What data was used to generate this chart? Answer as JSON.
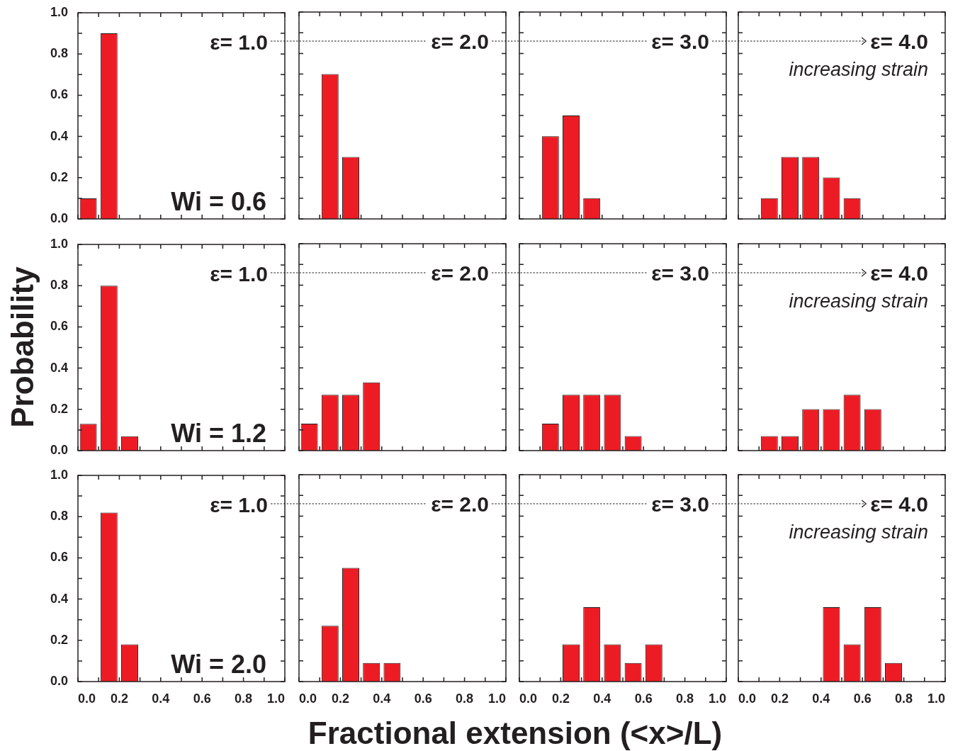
{
  "chart_data": [
    {
      "type": "histogram",
      "bins": [
        0,
        0.1,
        0.2
      ],
      "values": [
        0.1,
        0.9
      ],
      "color": "#ed1c24",
      "xlim": [
        0,
        1
      ],
      "ylim": [
        0,
        1
      ],
      "xticks": [
        0,
        0.1,
        0.2,
        0.3,
        0.4,
        0.5,
        0.6,
        0.7,
        0.8,
        0.9,
        1
      ],
      "yticks": [
        {
          "value": 0,
          "label": "0.0"
        },
        {
          "value": 0.1,
          "label": null
        },
        0.2,
        {
          "value": 0.3,
          "label": null
        },
        0.4,
        {
          "value": 0.5,
          "label": null
        },
        0.6,
        {
          "value": 0.7,
          "label": null
        },
        0.8,
        {
          "value": 0.9,
          "label": null
        },
        {
          "value": 1,
          "label": "1.0"
        }
      ],
      "tick_labels": "y",
      "annotations": [
        "ε= 1.0",
        "Wi = 0.6"
      ]
    },
    {
      "type": "histogram",
      "bins": [
        0.1,
        0.2,
        0.3
      ],
      "values": [
        0.7,
        0.3
      ],
      "color": "#ed1c24",
      "xlim": [
        0,
        1
      ],
      "ylim": [
        0,
        1
      ],
      "xticks": [
        0,
        0.1,
        0.2,
        0.3,
        0.4,
        0.5,
        0.6,
        0.7,
        0.8,
        0.9,
        1
      ],
      "yticks": [
        0,
        0.1,
        0.2,
        0.3,
        0.4,
        0.5,
        0.6,
        0.7,
        0.8,
        0.9,
        1
      ],
      "tick_labels": false,
      "annotations": [
        "ε= 2.0"
      ]
    },
    {
      "type": "histogram",
      "bins": [
        0.1,
        0.2,
        0.3,
        0.4
      ],
      "values": [
        0.4,
        0.5,
        0.1
      ],
      "color": "#ed1c24",
      "xlim": [
        0,
        1
      ],
      "ylim": [
        0,
        1
      ],
      "xticks": [
        0,
        0.1,
        0.2,
        0.3,
        0.4,
        0.5,
        0.6,
        0.7,
        0.8,
        0.9,
        1
      ],
      "yticks": [
        0,
        0.1,
        0.2,
        0.3,
        0.4,
        0.5,
        0.6,
        0.7,
        0.8,
        0.9,
        1
      ],
      "tick_labels": false,
      "annotations": [
        "ε= 3.0"
      ]
    },
    {
      "type": "histogram",
      "bins": [
        0.1,
        0.2,
        0.3,
        0.4,
        0.5,
        0.6
      ],
      "values": [
        0.1,
        0.3,
        0.3,
        0.2,
        0.1
      ],
      "color": "#ed1c24",
      "xlim": [
        0,
        1
      ],
      "ylim": [
        0,
        1
      ],
      "xticks": [
        0,
        0.1,
        0.2,
        0.3,
        0.4,
        0.5,
        0.6,
        0.7,
        0.8,
        0.9,
        1
      ],
      "yticks": [
        0,
        0.1,
        0.2,
        0.3,
        0.4,
        0.5,
        0.6,
        0.7,
        0.8,
        0.9,
        1
      ],
      "tick_labels": false,
      "annotations": [
        "ε= 4.0",
        "increasing strain"
      ]
    },
    {
      "type": "histogram",
      "bins": [
        0,
        0.1,
        0.2,
        0.3
      ],
      "values": [
        0.13,
        0.8,
        0.07
      ],
      "color": "#ed1c24",
      "xlim": [
        0,
        1
      ],
      "ylim": [
        0,
        1
      ],
      "xticks": [
        0,
        0.1,
        0.2,
        0.3,
        0.4,
        0.5,
        0.6,
        0.7,
        0.8,
        0.9,
        1
      ],
      "yticks": [
        {
          "value": 0,
          "label": "0.0"
        },
        {
          "value": 0.1,
          "label": null
        },
        0.2,
        {
          "value": 0.3,
          "label": null
        },
        0.4,
        {
          "value": 0.5,
          "label": null
        },
        0.6,
        {
          "value": 0.7,
          "label": null
        },
        0.8,
        {
          "value": 0.9,
          "label": null
        },
        {
          "value": 1,
          "label": "1.0"
        }
      ],
      "tick_labels": "y",
      "ylabel": "Probability",
      "annotations": [
        "ε= 1.0",
        "Wi = 1.2"
      ]
    },
    {
      "type": "histogram",
      "bins": [
        0,
        0.1,
        0.2,
        0.3,
        0.4
      ],
      "values": [
        0.13,
        0.27,
        0.27,
        0.33
      ],
      "color": "#ed1c24",
      "xlim": [
        0,
        1
      ],
      "ylim": [
        0,
        1
      ],
      "xticks": [
        0,
        0.1,
        0.2,
        0.3,
        0.4,
        0.5,
        0.6,
        0.7,
        0.8,
        0.9,
        1
      ],
      "yticks": [
        0,
        0.1,
        0.2,
        0.3,
        0.4,
        0.5,
        0.6,
        0.7,
        0.8,
        0.9,
        1
      ],
      "tick_labels": false,
      "annotations": [
        "ε= 2.0"
      ]
    },
    {
      "type": "histogram",
      "bins": [
        0.1,
        0.2,
        0.3,
        0.4,
        0.5,
        0.6
      ],
      "values": [
        0.13,
        0.27,
        0.27,
        0.27,
        0.07
      ],
      "color": "#ed1c24",
      "xlim": [
        0,
        1
      ],
      "ylim": [
        0,
        1
      ],
      "xticks": [
        0,
        0.1,
        0.2,
        0.3,
        0.4,
        0.5,
        0.6,
        0.7,
        0.8,
        0.9,
        1
      ],
      "yticks": [
        0,
        0.1,
        0.2,
        0.3,
        0.4,
        0.5,
        0.6,
        0.7,
        0.8,
        0.9,
        1
      ],
      "tick_labels": false,
      "annotations": [
        "ε= 3.0"
      ]
    },
    {
      "type": "histogram",
      "bins": [
        0.1,
        0.2,
        0.3,
        0.4,
        0.5,
        0.6,
        0.7
      ],
      "values": [
        0.07,
        0.07,
        0.2,
        0.2,
        0.27,
        0.2
      ],
      "color": "#ed1c24",
      "xlim": [
        0,
        1
      ],
      "ylim": [
        0,
        1
      ],
      "xticks": [
        0,
        0.1,
        0.2,
        0.3,
        0.4,
        0.5,
        0.6,
        0.7,
        0.8,
        0.9,
        1
      ],
      "yticks": [
        0,
        0.1,
        0.2,
        0.3,
        0.4,
        0.5,
        0.6,
        0.7,
        0.8,
        0.9,
        1
      ],
      "tick_labels": false,
      "annotations": [
        "ε= 4.0",
        "increasing strain"
      ]
    },
    {
      "type": "histogram",
      "bins": [
        0.1,
        0.2,
        0.3
      ],
      "values": [
        0.82,
        0.18
      ],
      "color": "#ed1c24",
      "xlim": [
        0,
        1
      ],
      "ylim": [
        0,
        1
      ],
      "xticks": [
        {
          "value": 0,
          "label": "0.0"
        },
        {
          "value": 0.1,
          "label": null
        },
        0.2,
        {
          "value": 0.3,
          "label": null
        },
        0.4,
        {
          "value": 0.5,
          "label": null
        },
        0.6,
        {
          "value": 0.7,
          "label": null
        },
        0.8,
        {
          "value": 0.9,
          "label": null
        },
        {
          "value": 1,
          "label": "1.0"
        }
      ],
      "yticks": [
        {
          "value": 0,
          "label": "0.0"
        },
        {
          "value": 0.1,
          "label": null
        },
        0.2,
        {
          "value": 0.3,
          "label": null
        },
        0.4,
        {
          "value": 0.5,
          "label": null
        },
        0.6,
        {
          "value": 0.7,
          "label": null
        },
        0.8,
        {
          "value": 0.9,
          "label": null
        },
        {
          "value": 1,
          "label": "1.0"
        }
      ],
      "annotations": [
        "ε= 1.0",
        "Wi = 2.0"
      ]
    },
    {
      "type": "histogram",
      "bins": [
        0.1,
        0.2,
        0.3,
        0.4,
        0.5
      ],
      "values": [
        0.27,
        0.55,
        0.09,
        0.09
      ],
      "color": "#ed1c24",
      "xlim": [
        0,
        1
      ],
      "ylim": [
        0,
        1
      ],
      "xticks": [
        {
          "value": 0,
          "label": "0.0"
        },
        {
          "value": 0.1,
          "label": null
        },
        0.2,
        {
          "value": 0.3,
          "label": null
        },
        0.4,
        {
          "value": 0.5,
          "label": null
        },
        0.6,
        {
          "value": 0.7,
          "label": null
        },
        0.8,
        {
          "value": 0.9,
          "label": null
        },
        {
          "value": 1,
          "label": "1.0"
        }
      ],
      "yticks": [
        0,
        0.1,
        0.2,
        0.3,
        0.4,
        0.5,
        0.6,
        0.7,
        0.8,
        0.9,
        1
      ],
      "tick_labels": "x",
      "xlabel": "Fractional extension (<x>/L)",
      "annotations": [
        "ε= 2.0"
      ]
    },
    {
      "type": "histogram",
      "bins": [
        0.2,
        0.3,
        0.4,
        0.5,
        0.6,
        0.7
      ],
      "values": [
        0.18,
        0.36,
        0.18,
        0.09,
        0.18
      ],
      "color": "#ed1c24",
      "xlim": [
        0,
        1
      ],
      "ylim": [
        0,
        1
      ],
      "xticks": [
        {
          "value": 0,
          "label": "0.0"
        },
        {
          "value": 0.1,
          "label": null
        },
        0.2,
        {
          "value": 0.3,
          "label": null
        },
        0.4,
        {
          "value": 0.5,
          "label": null
        },
        0.6,
        {
          "value": 0.7,
          "label": null
        },
        0.8,
        {
          "value": 0.9,
          "label": null
        },
        {
          "value": 1,
          "label": "1.0"
        }
      ],
      "yticks": [
        0,
        0.1,
        0.2,
        0.3,
        0.4,
        0.5,
        0.6,
        0.7,
        0.8,
        0.9,
        1
      ],
      "tick_labels": "x",
      "annotations": [
        "ε= 3.0"
      ]
    },
    {
      "type": "histogram",
      "bins": [
        0.4,
        0.5,
        0.6,
        0.7,
        0.8
      ],
      "values": [
        0.36,
        0.18,
        0.36,
        0.09
      ],
      "color": "#ed1c24",
      "xlim": [
        0,
        1
      ],
      "ylim": [
        0,
        1
      ],
      "xticks": [
        {
          "value": 0,
          "label": "0.0"
        },
        {
          "value": 0.1,
          "label": null
        },
        0.2,
        {
          "value": 0.3,
          "label": null
        },
        0.4,
        {
          "value": 0.5,
          "label": null
        },
        0.6,
        {
          "value": 0.7,
          "label": null
        },
        0.8,
        {
          "value": 0.9,
          "label": null
        },
        {
          "value": 1,
          "label": "1.0"
        }
      ],
      "yticks": [
        0,
        0.1,
        0.2,
        0.3,
        0.4,
        0.5,
        0.6,
        0.7,
        0.8,
        0.9,
        1
      ],
      "tick_labels": "x",
      "annotations": [
        "ε= 4.0",
        "increasing strain"
      ]
    }
  ]
}
